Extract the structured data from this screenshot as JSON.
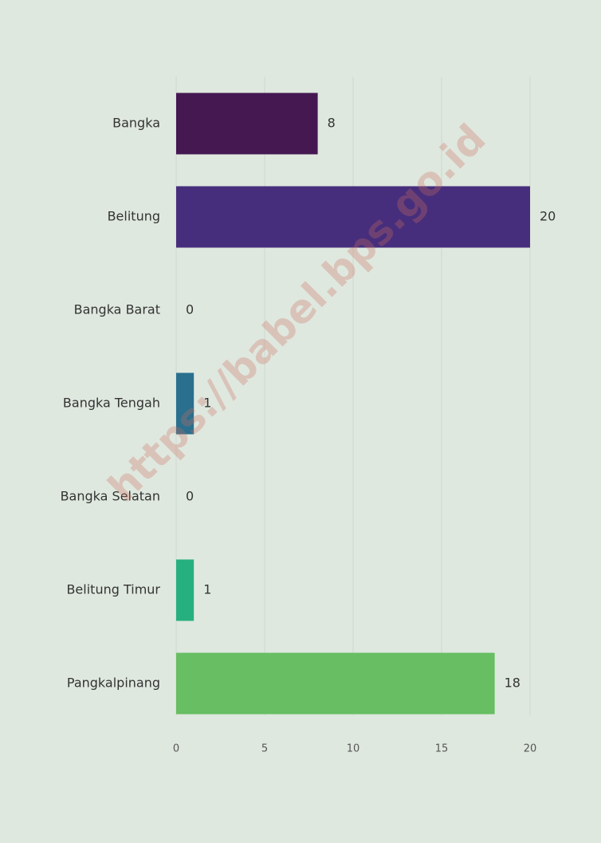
{
  "chart_data": {
    "type": "barh",
    "categories": [
      "Bangka",
      "Belitung",
      "Bangka Barat",
      "Bangka Tengah",
      "Bangka Selatan",
      "Belitung Timur",
      "Pangkalpinang"
    ],
    "values": [
      8,
      20,
      0,
      1,
      0,
      1,
      18
    ],
    "colors": [
      "#451852",
      "#472e7c",
      "#3b4f8a",
      "#2a6f8e",
      "#22908c",
      "#27b07f",
      "#67be63"
    ],
    "xlim": [
      0,
      20
    ],
    "xticks": [
      0,
      5,
      10,
      15,
      20
    ],
    "grid": true,
    "watermark": "https://babel.bps.go.id"
  }
}
